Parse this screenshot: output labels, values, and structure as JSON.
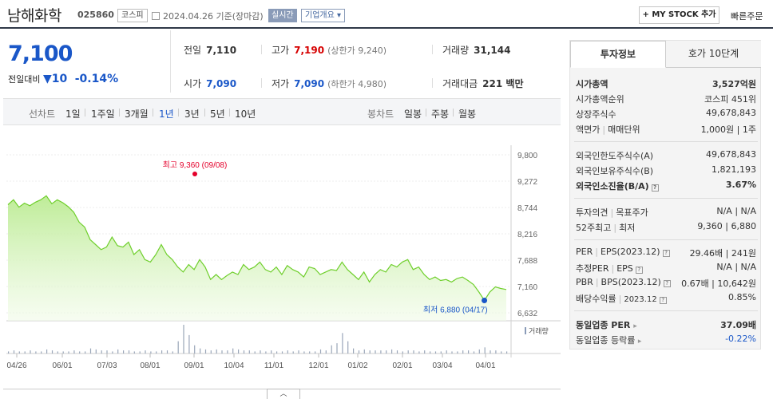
{
  "header": {
    "name": "남해화학",
    "code": "025860",
    "market": "코스피",
    "date": "2024.04.26 기준(장마감)",
    "realtime": "실시간",
    "company_info": "기업개요",
    "mystock": "+ MY STOCK 추가",
    "quick_order": "빠른주문"
  },
  "price": {
    "current": "7,100",
    "change_label": "전일대비",
    "change": "10",
    "rate": "-0.14%"
  },
  "stats": {
    "prev_label": "전일",
    "prev": "7,110",
    "high_label": "고가",
    "high": "7,190",
    "upper_label": "(상한가 9,240)",
    "volume_label": "거래량",
    "volume": "31,144",
    "open_label": "시가",
    "open": "7,090",
    "low_label": "저가",
    "low": "7,090",
    "lower_label": "(하한가 4,980)",
    "amount_label": "거래대금",
    "amount": "221 백만"
  },
  "period_bar": {
    "line_label": "선차트",
    "periods": [
      "1일",
      "1주일",
      "3개월",
      "1년",
      "3년",
      "5년",
      "10년"
    ],
    "active": "1년",
    "candle_label": "봉차트",
    "candles": [
      "일봉",
      "주봉",
      "월봉"
    ]
  },
  "chart_data": {
    "type": "area",
    "title": "",
    "xlabel": "",
    "ylabel": "",
    "y_ticks": [
      "9,800",
      "9,272",
      "8,744",
      "8,216",
      "7,688",
      "7,160",
      "6,632"
    ],
    "ylim": [
      6632,
      9800
    ],
    "x_ticks": [
      "04/26",
      "06/01",
      "07/03",
      "08/01",
      "09/01",
      "10/04",
      "11/01",
      "12/01",
      "01/02",
      "02/01",
      "03/04",
      "04/01"
    ],
    "series": [
      {
        "values": [
          8800,
          8900,
          8750,
          8830,
          8780,
          8850,
          8900,
          8980,
          8820,
          8900,
          8840,
          8760,
          8650,
          8450,
          8350,
          8100,
          8000,
          7900,
          7950,
          8150,
          7980,
          7950,
          8050,
          7800,
          7900,
          7700,
          7650,
          7800,
          8000,
          7800,
          7700,
          7550,
          7450,
          7600,
          7500,
          7700,
          7550,
          7300,
          7400,
          7300,
          7380,
          7450,
          7400,
          7600,
          7500,
          7550,
          7650,
          7500,
          7450,
          7550,
          7400,
          7580,
          7500,
          7450,
          7350,
          7550,
          7520,
          7400,
          7450,
          7500,
          7480,
          7650,
          7500,
          7400,
          7300,
          7450,
          7250,
          7400,
          7500,
          7450,
          7600,
          7550,
          7650,
          7700,
          7500,
          7550,
          7400,
          7300,
          7350,
          7280,
          7300,
          7250,
          7320,
          7350,
          7280,
          7200,
          7050,
          6880,
          7050,
          7150,
          7120,
          7100
        ]
      }
    ],
    "high_label": "최고 9,360 (09/08)",
    "low_label": "최저 6,880 (04/17)",
    "volume_label": "거래량",
    "volume": [
      2,
      3,
      2,
      2,
      3,
      2,
      2,
      4,
      3,
      2,
      2,
      2,
      3,
      2,
      2,
      5,
      4,
      3,
      3,
      2,
      4,
      3,
      3,
      2,
      2,
      3,
      2,
      2,
      3,
      3,
      2,
      12,
      28,
      18,
      8,
      5,
      4,
      3,
      4,
      3,
      3,
      5,
      4,
      3,
      3,
      2,
      3,
      2,
      3,
      2,
      2,
      3,
      2,
      3,
      2,
      2,
      2,
      4,
      3,
      8,
      10,
      20,
      12,
      5,
      3,
      4,
      3,
      3,
      3,
      3,
      4,
      3,
      2,
      3,
      3,
      2,
      3,
      2,
      2,
      2,
      3,
      2,
      2,
      3,
      3,
      2,
      4,
      6,
      3,
      3,
      2,
      2
    ]
  },
  "right_panel": {
    "tab_invest": "투자정보",
    "tab_quote": "호가 10단계",
    "market_cap_label": "시가총액",
    "market_cap": "3,527억원",
    "market_cap_rank_label": "시가총액순위",
    "market_cap_rank": "코스피 451위",
    "shares_label": "상장주식수",
    "shares": "49,678,843",
    "par_label": "액면가",
    "unit_label": "매매단위",
    "par_unit": "1,000원 | 1주",
    "foreign_limit_label": "외국인한도주식수(A)",
    "foreign_limit": "49,678,843",
    "foreign_hold_label": "외국인보유주식수(B)",
    "foreign_hold": "1,821,193",
    "foreign_ratio_label": "외국인소진율(B/A)",
    "foreign_ratio": "3.67%",
    "opinion_label": "투자의견",
    "target_label": "목표주가",
    "opinion_target": "N/A | N/A",
    "w52_label": "52주최고",
    "w52_low_label": "최저",
    "w52": "9,360 | 6,880",
    "per_label": "PER",
    "eps_label": "EPS(2023.12)",
    "per_eps": "29.46배 | 241원",
    "est_per_label": "추정PER",
    "est_eps_label": "EPS",
    "est": "N/A | N/A",
    "pbr_label": "PBR",
    "bps_label": "BPS(2023.12)",
    "pbr_bps": "0.67배 | 10,642원",
    "div_label": "배당수익률",
    "div_date": "2023.12",
    "div": "0.85%",
    "sector_per_label": "동일업종 PER",
    "sector_per": "37.09배",
    "sector_rate_label": "동일업종 등락률",
    "sector_rate": "-0.22%"
  }
}
